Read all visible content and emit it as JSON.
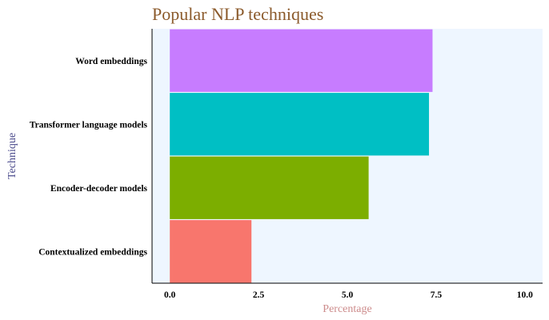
{
  "chart_data": {
    "type": "bar",
    "orientation": "horizontal",
    "title": "Popular NLP techniques",
    "xlabel": "Percentage",
    "ylabel": "Technique",
    "categories": [
      "Word embeddings",
      "Transformer language models",
      "Encoder-decoder models",
      "Contextualized embeddings"
    ],
    "values": [
      7.4,
      7.3,
      5.6,
      2.3
    ],
    "colors": [
      "#c77cff",
      "#00bfc4",
      "#7cae00",
      "#f8766d"
    ],
    "xlim": [
      -0.5,
      10.5
    ],
    "xticks": [
      "0.0",
      "2.5",
      "5.0",
      "7.5",
      "10.0"
    ],
    "xtick_values": [
      0,
      2.5,
      5,
      7.5,
      10
    ],
    "grid": false,
    "legend": "none",
    "panel_background": "#eef6ff",
    "title_color": "#8b5a2b",
    "xlabel_color": "#cd8c8c",
    "ylabel_color": "#4b4b8c"
  }
}
